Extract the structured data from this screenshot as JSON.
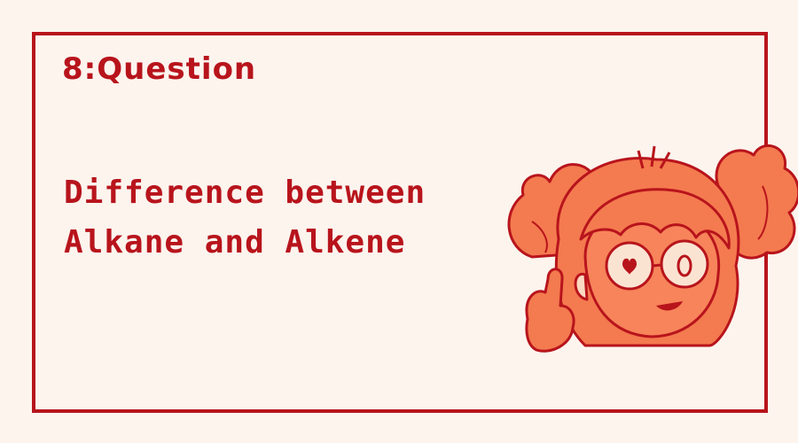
{
  "card": {
    "title": "8:Question",
    "question_line1": "Difference between",
    "question_line2": "Alkane and Alkene"
  },
  "colors": {
    "background": "#fdf4ee",
    "accent": "#b8141c",
    "mascot_fill": "#f47a4f"
  },
  "mascot": {
    "icon": "cartoon-girl-pointing-icon"
  }
}
